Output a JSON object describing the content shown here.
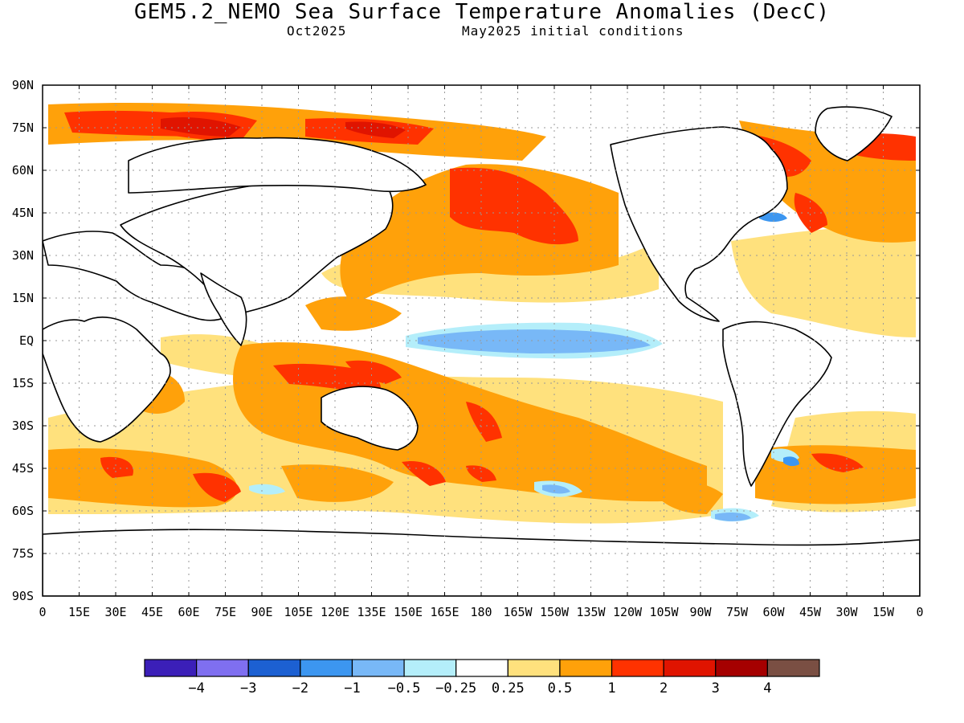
{
  "title": "GEM5.2_NEMO Sea Surface Temperature Anomalies (DecC)",
  "subtitle_left": "Oct2025",
  "subtitle_right": "May2025 initial conditions",
  "lat_labels": [
    "90N",
    "75N",
    "60N",
    "45N",
    "30N",
    "15N",
    "EQ",
    "15S",
    "30S",
    "45S",
    "60S",
    "75S",
    "90S"
  ],
  "lon_labels": [
    "0",
    "15E",
    "30E",
    "45E",
    "60E",
    "75E",
    "90E",
    "105E",
    "120E",
    "135E",
    "150E",
    "165E",
    "180",
    "165W",
    "150W",
    "135W",
    "120W",
    "105W",
    "90W",
    "75W",
    "60W",
    "45W",
    "30W",
    "15W",
    "0"
  ],
  "colorbar": {
    "colors": [
      "#3b1fb8",
      "#7f6ff0",
      "#1c60d2",
      "#3c96f0",
      "#78b8f7",
      "#b4eefa",
      "#ffffff",
      "#ffe17d",
      "#ffa10a",
      "#ff3200",
      "#e01400",
      "#a50000",
      "#7a4f43"
    ],
    "labels": [
      "−4",
      "−3",
      "−2",
      "−1",
      "−0.5",
      "−0.25",
      "0.25",
      "0.5",
      "1",
      "2",
      "3",
      "4"
    ]
  },
  "colors": {
    "land": "#ffffff",
    "coast": "#000000",
    "grid": "#999999"
  }
}
